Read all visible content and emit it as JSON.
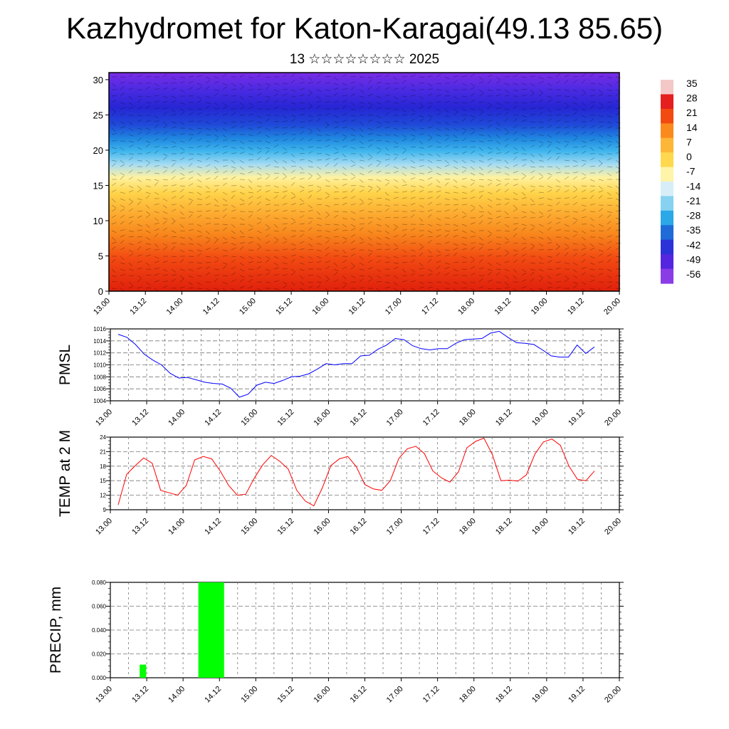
{
  "title": "Kazhydromet for Katon-Karagai(49.13 85.65)",
  "subtitle": "13 ☆☆☆☆☆☆☆☆ 2025",
  "chart_data": [
    {
      "type": "heatmap",
      "name": "vertical cross-section",
      "x_ticks": [
        "13.00",
        "13.12",
        "14.00",
        "14.12",
        "15.00",
        "15.12",
        "16.00",
        "16.12",
        "17.00",
        "17.12",
        "18.00",
        "18.12",
        "19.00",
        "19.12",
        "20.00"
      ],
      "y_ticks": [
        0,
        5,
        10,
        15,
        20,
        25,
        30
      ],
      "ylim": [
        0,
        31
      ],
      "colorbar_labels": [
        35,
        28,
        21,
        14,
        7,
        0,
        -7,
        -14,
        -21,
        -28,
        -35,
        -42,
        -49,
        -56
      ],
      "colorbar_colors": [
        "#f5c8c8",
        "#e51f1f",
        "#f24a10",
        "#fb8a1c",
        "#fdb637",
        "#ffd84e",
        "#fff4a8",
        "#d7eef8",
        "#86d2f0",
        "#2aa8e8",
        "#1f6bd8",
        "#2b32d8",
        "#5426e0",
        "#8a3ce6"
      ],
      "grid": false
    },
    {
      "type": "line",
      "ylabel": "PMSL",
      "ylim": [
        1004,
        1016
      ],
      "y_ticks": [
        1004,
        1006,
        1008,
        1010,
        1012,
        1014,
        1016
      ],
      "x_ticks": [
        "13.00",
        "13.12",
        "14.00",
        "14.12",
        "15.00",
        "15.12",
        "16.00",
        "16.12",
        "17.00",
        "17.12",
        "18.00",
        "18.12",
        "19.00",
        "19.12",
        "20.00"
      ],
      "series": [
        {
          "color": "#0000ff",
          "values": [
            1015.1,
            1014.6,
            1013.4,
            1011.8,
            1010.8,
            1010.0,
            1008.6,
            1007.8,
            1007.9,
            1007.5,
            1007.1,
            1006.9,
            1006.8,
            1006.1,
            1004.6,
            1005.1,
            1006.6,
            1007.1,
            1006.9,
            1007.4,
            1008.0,
            1008.1,
            1008.5,
            1009.3,
            1010.2,
            1010.0,
            1010.2,
            1010.2,
            1011.5,
            1011.6,
            1012.6,
            1013.3,
            1014.4,
            1014.2,
            1013.2,
            1012.7,
            1012.5,
            1012.7,
            1012.7,
            1013.6,
            1014.2,
            1014.3,
            1014.4,
            1015.3,
            1015.6,
            1014.6,
            1013.7,
            1013.6,
            1013.4,
            1012.5,
            1011.5,
            1011.3,
            1011.3,
            1013.3,
            1011.9,
            1013.0
          ]
        }
      ],
      "grid": true
    },
    {
      "type": "line",
      "ylabel": "TEMP at 2 M",
      "ylim": [
        9,
        24
      ],
      "y_ticks": [
        9,
        12,
        15,
        18,
        21,
        24
      ],
      "x_ticks": [
        "13.00",
        "13.12",
        "14.00",
        "14.12",
        "15.00",
        "15.12",
        "16.00",
        "16.12",
        "17.00",
        "17.12",
        "18.00",
        "18.12",
        "19.00",
        "19.12",
        "20.00"
      ],
      "series": [
        {
          "color": "#ff0000",
          "values": [
            10.0,
            16.3,
            18.1,
            19.7,
            18.6,
            13.0,
            12.5,
            12.0,
            14.0,
            19.3,
            20.0,
            19.5,
            17.0,
            14.0,
            12.0,
            12.2,
            15.5,
            18.3,
            20.2,
            19.0,
            17.4,
            13.0,
            10.8,
            9.8,
            13.5,
            18.1,
            19.5,
            20.0,
            17.9,
            14.2,
            13.3,
            13.0,
            15.0,
            19.6,
            21.6,
            22.1,
            20.6,
            17.0,
            15.6,
            14.7,
            16.8,
            21.8,
            23.1,
            23.8,
            20.4,
            15.0,
            15.1,
            14.9,
            16.2,
            20.5,
            23.0,
            23.6,
            22.3,
            18.0,
            15.3,
            15.0,
            17.0
          ]
        }
      ],
      "grid": true
    },
    {
      "type": "bar",
      "ylabel": "PRECIP, mm",
      "ylim": [
        0,
        0.08
      ],
      "y_ticks": [
        "0.000",
        "0.020",
        "0.040",
        "0.060",
        "0.080"
      ],
      "x_ticks": [
        "13.00",
        "13.12",
        "14.00",
        "14.12",
        "15.00",
        "15.12",
        "16.00",
        "16.12",
        "17.00",
        "17.12",
        "18.00",
        "18.12",
        "19.00",
        "19.12",
        "20.00"
      ],
      "bar_color": "#00ff00",
      "bars": [
        {
          "x_start": 0.3,
          "x_end": 0.39,
          "value": 0.011
        },
        {
          "x_start": 1.12,
          "x_end": 1.48,
          "value": 0.08
        }
      ],
      "grid": true
    }
  ]
}
